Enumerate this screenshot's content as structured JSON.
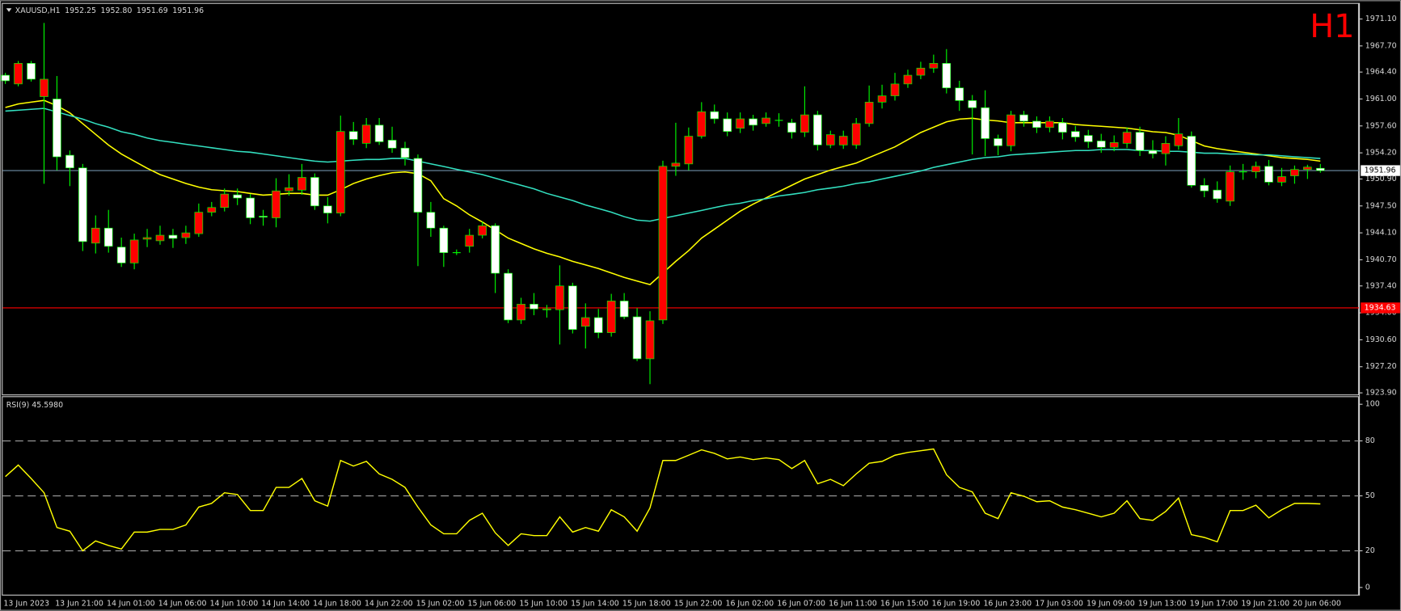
{
  "chart_data": [
    {
      "type": "candlestick",
      "title": "XAUUSD,H1",
      "ohlc_labels": [
        "1952.25",
        "1952.80",
        "1951.69",
        "1951.96"
      ],
      "timeframe": "H1",
      "categories": [
        "13 Jun 2023",
        null,
        null,
        null,
        "13 Jun 21:00",
        null,
        null,
        null,
        "14 Jun 01:00",
        null,
        null,
        null,
        "14 Jun 06:00",
        null,
        null,
        null,
        "14 Jun 10:00",
        null,
        null,
        null,
        "14 Jun 14:00",
        null,
        null,
        null,
        "14 Jun 18:00",
        null,
        null,
        null,
        "14 Jun 22:00",
        null,
        null,
        null,
        "15 Jun 02:00",
        null,
        null,
        null,
        "15 Jun 06:00",
        null,
        null,
        null,
        "15 Jun 10:00",
        null,
        null,
        null,
        "15 Jun 14:00",
        null,
        null,
        null,
        "15 Jun 18:00",
        null,
        null,
        null,
        "15 Jun 22:00",
        null,
        null,
        null,
        "16 Jun 02:00",
        null,
        null,
        null,
        "16 Jun 07:00",
        null,
        null,
        null,
        "16 Jun 11:00",
        null,
        null,
        null,
        "16 Jun 15:00",
        null,
        null,
        null,
        "16 Jun 19:00",
        null,
        null,
        null,
        "16 Jun 23:00",
        null,
        null,
        null,
        "17 Jun 03:00",
        null,
        null,
        null,
        "19 Jun 09:00",
        null,
        null,
        null,
        "19 Jun 13:00",
        null,
        null,
        null,
        "19 Jun 17:00",
        null,
        null,
        null,
        "19 Jun 21:00",
        null,
        null,
        null,
        "20 Jun 06:00",
        null,
        null
      ],
      "open": [
        1964.0,
        1962.9,
        1965.5,
        1961.3,
        1961.0,
        1953.9,
        1952.3,
        1942.8,
        1944.7,
        1942.3,
        1940.3,
        1943.3,
        1943.1,
        1943.8,
        1943.5,
        1944.0,
        1946.7,
        1947.3,
        1948.9,
        1948.5,
        1946.2,
        1946.0,
        1949.4,
        1949.5,
        1951.1,
        1947.5,
        1946.6,
        1956.9,
        1955.4,
        1957.7,
        1955.8,
        1954.8,
        1953.5,
        1946.7,
        1944.7,
        1941.6,
        1942.4,
        1943.8,
        1945.0,
        1939.0,
        1933.1,
        1935.1,
        1934.4,
        1934.4,
        1937.4,
        1932.3,
        1933.4,
        1931.5,
        1935.5,
        1933.5,
        1928.2,
        1933.1,
        1952.5,
        1952.8,
        1956.3,
        1959.4,
        1958.5,
        1957.3,
        1958.5,
        1957.9,
        1958.3,
        1958.0,
        1956.8,
        1959.0,
        1955.2,
        1955.2,
        1955.2,
        1957.9,
        1960.6,
        1961.4,
        1962.9,
        1964.0,
        1964.9,
        1965.5,
        1962.4,
        1960.8,
        1959.9,
        1956.0,
        1955.1,
        1959.0,
        1958.2,
        1957.4,
        1958.0,
        1956.9,
        1956.4,
        1955.7,
        1954.9,
        1955.4,
        1956.8,
        1954.5,
        1954.1,
        1955.1,
        1956.3,
        1950.1,
        1949.5,
        1948.1,
        1951.8,
        1951.8,
        1952.5,
        1950.5,
        1951.3,
        1952.1,
        1952.25
      ],
      "high": [
        1964.3,
        1965.8,
        1965.8,
        1970.6,
        1963.9,
        1954.5,
        1952.8,
        1946.3,
        1947.0,
        1943.5,
        1944.0,
        1944.6,
        1945.0,
        1944.6,
        1945.0,
        1947.8,
        1948.0,
        1949.7,
        1949.7,
        1949.0,
        1947.0,
        1951.0,
        1951.5,
        1952.8,
        1951.6,
        1948.6,
        1958.9,
        1958.1,
        1958.6,
        1958.6,
        1957.5,
        1955.6,
        1954.0,
        1948.0,
        1945.0,
        1942.0,
        1944.6,
        1945.5,
        1945.3,
        1939.5,
        1935.9,
        1936.5,
        1935.0,
        1940.0,
        1937.8,
        1935.2,
        1934.5,
        1936.4,
        1936.5,
        1934.6,
        1934.2,
        1953.2,
        1958.0,
        1957.4,
        1960.6,
        1960.3,
        1959.3,
        1959.3,
        1959.0,
        1959.3,
        1959.2,
        1958.5,
        1962.6,
        1959.5,
        1957.0,
        1957.0,
        1958.6,
        1962.7,
        1962.8,
        1964.3,
        1964.7,
        1965.7,
        1966.6,
        1967.3,
        1963.3,
        1961.5,
        1962.1,
        1956.5,
        1959.5,
        1959.5,
        1958.8,
        1958.8,
        1958.6,
        1957.6,
        1957.1,
        1956.6,
        1956.4,
        1957.4,
        1957.5,
        1955.8,
        1956.3,
        1958.6,
        1956.9,
        1951.0,
        1950.6,
        1952.6,
        1952.8,
        1953.1,
        1953.3,
        1952.3,
        1952.6,
        1952.7,
        1952.8
      ],
      "low": [
        1962.9,
        1962.6,
        1963.2,
        1950.3,
        1952.0,
        1950.0,
        1941.8,
        1941.5,
        1941.6,
        1939.8,
        1939.5,
        1942.3,
        1942.6,
        1942.2,
        1942.7,
        1943.6,
        1946.2,
        1946.8,
        1947.6,
        1945.2,
        1945.0,
        1944.8,
        1948.8,
        1948.9,
        1947.0,
        1945.3,
        1946.2,
        1955.2,
        1954.8,
        1955.2,
        1954.2,
        1952.6,
        1939.9,
        1943.6,
        1939.8,
        1941.3,
        1941.6,
        1943.4,
        1936.5,
        1932.7,
        1932.6,
        1933.7,
        1933.4,
        1930.0,
        1931.4,
        1929.5,
        1930.8,
        1931.0,
        1933.2,
        1927.9,
        1925.0,
        1932.6,
        1951.3,
        1952.0,
        1956.0,
        1957.9,
        1956.3,
        1956.7,
        1957.0,
        1957.5,
        1957.5,
        1956.0,
        1956.2,
        1954.5,
        1954.8,
        1954.7,
        1954.7,
        1957.5,
        1959.8,
        1960.8,
        1962.4,
        1963.5,
        1964.3,
        1961.7,
        1959.5,
        1954.0,
        1953.8,
        1953.9,
        1954.4,
        1957.5,
        1956.7,
        1956.8,
        1955.9,
        1955.6,
        1954.8,
        1954.2,
        1954.4,
        1954.8,
        1953.8,
        1953.5,
        1952.6,
        1954.6,
        1949.8,
        1948.6,
        1947.9,
        1947.5,
        1950.8,
        1951.0,
        1950.1,
        1950.0,
        1950.3,
        1950.9,
        1951.69
      ],
      "close": [
        1963.3,
        1965.5,
        1963.5,
        1963.5,
        1953.7,
        1952.3,
        1943.0,
        1944.7,
        1942.4,
        1940.3,
        1943.2,
        1943.5,
        1943.8,
        1943.4,
        1944.1,
        1946.7,
        1947.3,
        1949.0,
        1948.5,
        1946.0,
        1946.1,
        1949.4,
        1949.8,
        1951.1,
        1947.5,
        1946.6,
        1956.9,
        1955.9,
        1957.7,
        1955.6,
        1954.8,
        1953.6,
        1946.7,
        1944.7,
        1941.6,
        1941.6,
        1943.8,
        1945.0,
        1939.0,
        1933.1,
        1935.1,
        1934.5,
        1934.5,
        1937.4,
        1931.9,
        1933.4,
        1931.5,
        1935.5,
        1933.5,
        1928.2,
        1933.0,
        1952.5,
        1952.9,
        1956.3,
        1959.4,
        1958.5,
        1956.9,
        1958.5,
        1957.7,
        1958.6,
        1958.3,
        1956.8,
        1959.0,
        1955.2,
        1956.5,
        1956.3,
        1957.9,
        1960.6,
        1961.4,
        1962.9,
        1964.0,
        1964.9,
        1965.5,
        1962.4,
        1960.8,
        1959.9,
        1956.0,
        1955.1,
        1959.0,
        1958.2,
        1957.4,
        1958.2,
        1956.8,
        1956.2,
        1955.6,
        1954.9,
        1955.5,
        1956.8,
        1954.5,
        1954.1,
        1955.4,
        1956.6,
        1950.1,
        1949.4,
        1948.4,
        1951.8,
        1951.8,
        1952.5,
        1950.5,
        1951.2,
        1952.1,
        1952.4,
        1951.96
      ],
      "up_color": "#ff0000",
      "down_color": "#ffffff",
      "wick_color": "#00ff00",
      "overlays": [
        {
          "color": "#ffff00",
          "values": [
            1959.92,
            1960.37,
            1960.6,
            1960.83,
            1960.15,
            1959.25,
            1957.89,
            1956.54,
            1955.18,
            1954.05,
            1953.15,
            1952.25,
            1951.46,
            1950.89,
            1950.33,
            1949.88,
            1949.54,
            1949.42,
            1949.31,
            1949.08,
            1948.86,
            1948.97,
            1949.08,
            1949.08,
            1948.86,
            1948.86,
            1949.54,
            1950.33,
            1950.89,
            1951.34,
            1951.68,
            1951.79,
            1951.57,
            1950.67,
            1948.41,
            1947.5,
            1946.37,
            1945.47,
            1944.46,
            1943.44,
            1942.76,
            1942.08,
            1941.52,
            1941.07,
            1940.5,
            1940.05,
            1939.6,
            1939.04,
            1938.47,
            1938.02,
            1937.57,
            1939.04,
            1940.5,
            1941.86,
            1943.44,
            1944.57,
            1945.7,
            1946.83,
            1947.73,
            1948.52,
            1949.31,
            1950.1,
            1950.89,
            1951.46,
            1952.02,
            1952.47,
            1952.92,
            1953.6,
            1954.28,
            1954.96,
            1955.86,
            1956.76,
            1957.44,
            1958.12,
            1958.46,
            1958.57,
            1958.34,
            1958.23,
            1958.0,
            1958.0,
            1958.0,
            1958.0,
            1958.0,
            1957.78,
            1957.66,
            1957.55,
            1957.44,
            1957.33,
            1957.1,
            1956.87,
            1956.76,
            1956.42,
            1955.75,
            1955.07,
            1954.73,
            1954.5,
            1954.28,
            1954.05,
            1953.83,
            1953.6,
            1953.49,
            1953.37,
            1953.15
          ]
        },
        {
          "color": "#33e0c0",
          "values": [
            1959.47,
            1959.58,
            1959.7,
            1959.81,
            1959.36,
            1958.91,
            1958.46,
            1957.89,
            1957.44,
            1956.87,
            1956.54,
            1956.08,
            1955.75,
            1955.52,
            1955.29,
            1955.07,
            1954.84,
            1954.62,
            1954.39,
            1954.28,
            1954.05,
            1953.83,
            1953.6,
            1953.37,
            1953.15,
            1953.04,
            1953.15,
            1953.26,
            1953.37,
            1953.37,
            1953.49,
            1953.49,
            1953.15,
            1952.81,
            1952.47,
            1952.13,
            1951.79,
            1951.46,
            1951.0,
            1950.55,
            1950.1,
            1949.65,
            1949.08,
            1948.63,
            1948.18,
            1947.62,
            1947.17,
            1946.71,
            1946.15,
            1945.7,
            1945.58,
            1945.92,
            1946.26,
            1946.6,
            1946.94,
            1947.28,
            1947.62,
            1947.84,
            1948.18,
            1948.41,
            1948.75,
            1948.97,
            1949.2,
            1949.54,
            1949.76,
            1949.99,
            1950.33,
            1950.55,
            1950.89,
            1951.23,
            1951.57,
            1951.91,
            1952.36,
            1952.7,
            1953.04,
            1953.37,
            1953.6,
            1953.71,
            1953.94,
            1954.05,
            1954.16,
            1954.28,
            1954.39,
            1954.5,
            1954.5,
            1954.62,
            1954.62,
            1954.62,
            1954.5,
            1954.5,
            1954.39,
            1954.39,
            1954.28,
            1954.16,
            1954.16,
            1954.05,
            1954.05,
            1953.94,
            1953.94,
            1953.83,
            1953.71,
            1953.6,
            1953.49
          ]
        }
      ],
      "bid": {
        "value": 1951.96,
        "label": "1951.96"
      },
      "level": {
        "value": 1934.63,
        "label": "1934.63",
        "color": "#ff0000"
      },
      "ylim": [
        1923.7,
        1972.9
      ],
      "yticks": [
        {
          "value": 1971.1,
          "label": "1971.10"
        },
        {
          "value": 1967.7,
          "label": "1967.70"
        },
        {
          "value": 1964.4,
          "label": "1964.40"
        },
        {
          "value": 1961.0,
          "label": "1961.00"
        },
        {
          "value": 1957.6,
          "label": "1957.60"
        },
        {
          "value": 1954.2,
          "label": "1954.20"
        },
        {
          "value": 1950.9,
          "label": "1950.90"
        },
        {
          "value": 1947.5,
          "label": "1947.50"
        },
        {
          "value": 1944.1,
          "label": "1944.10"
        },
        {
          "value": 1940.7,
          "label": "1940.70"
        },
        {
          "value": 1937.4,
          "label": "1937.40"
        },
        {
          "value": 1934.0,
          "label": "1934.00"
        },
        {
          "value": 1930.6,
          "label": "1930.60"
        },
        {
          "value": 1927.2,
          "label": "1927.20"
        },
        {
          "value": 1923.9,
          "label": "1923.90"
        }
      ]
    },
    {
      "type": "line",
      "title": "RSI(9) 45.5980",
      "color": "#ffff00",
      "values": [
        60.5,
        66.8,
        59.5,
        51.7,
        32.7,
        30.7,
        20.0,
        25.4,
        22.9,
        21.0,
        30.2,
        30.2,
        31.7,
        31.7,
        34.1,
        43.9,
        45.9,
        51.7,
        50.7,
        42.0,
        42.0,
        54.6,
        54.6,
        59.5,
        47.3,
        44.4,
        69.3,
        66.3,
        68.8,
        62.0,
        59.0,
        54.6,
        43.9,
        34.1,
        29.3,
        29.3,
        36.6,
        40.5,
        29.8,
        22.9,
        29.3,
        28.3,
        28.3,
        38.5,
        30.2,
        32.7,
        30.7,
        42.4,
        38.5,
        30.7,
        43.4,
        69.3,
        69.3,
        72.2,
        75.1,
        73.2,
        70.2,
        71.2,
        69.8,
        70.7,
        69.8,
        64.9,
        69.3,
        56.6,
        59.0,
        55.6,
        62.0,
        67.8,
        68.8,
        72.2,
        73.7,
        74.6,
        75.6,
        61.5,
        54.6,
        52.2,
        40.5,
        37.6,
        51.7,
        49.8,
        46.8,
        47.3,
        43.9,
        42.4,
        40.5,
        38.5,
        40.5,
        47.3,
        37.6,
        36.6,
        41.5,
        48.8,
        28.8,
        27.3,
        24.9,
        42.0,
        42.0,
        44.9,
        38.0,
        42.4,
        45.9,
        45.9,
        45.598
      ],
      "ylim": [
        -5.4,
        103.9
      ],
      "yticks": [
        100,
        80,
        50,
        20,
        0
      ],
      "levels": [
        80,
        50,
        20
      ]
    }
  ]
}
